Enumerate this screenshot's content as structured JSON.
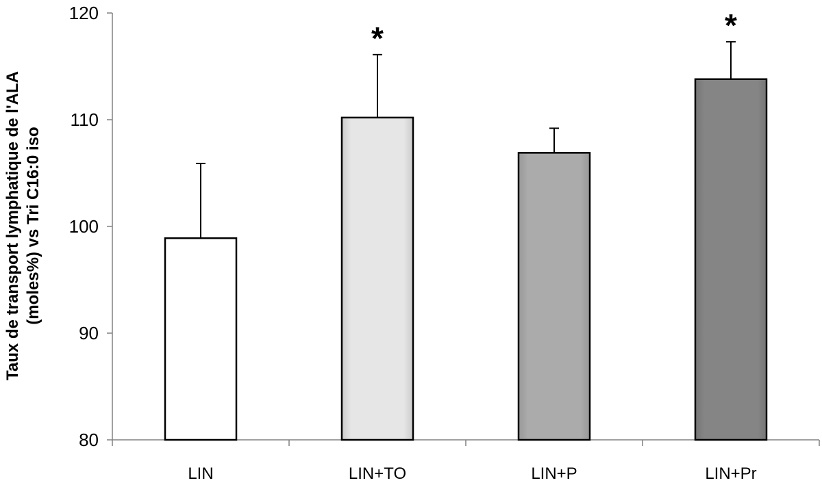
{
  "chart_data": {
    "type": "bar",
    "title": "",
    "xlabel": "",
    "ylabel_line1": "Taux de transport lymphatique de l'ALA",
    "ylabel_line2": "(moles%) vs Tri C16:0 iso",
    "ylim": [
      80,
      120
    ],
    "yticks": [
      80,
      90,
      100,
      110,
      120
    ],
    "ytick_labels": [
      "80",
      "90",
      "100",
      "110",
      "120"
    ],
    "categories": [
      "LIN",
      "LIN+TO",
      "LIN+P",
      "LIN+Pr"
    ],
    "values": [
      98.9,
      110.2,
      106.9,
      113.8
    ],
    "errors": [
      7.0,
      5.9,
      2.3,
      3.5
    ],
    "significance": [
      "",
      "*",
      "",
      "*"
    ],
    "bar_colors": [
      "#ffffff",
      "#e6e6e6",
      "#ababab",
      "#858585"
    ],
    "grid": false,
    "legend": "none"
  }
}
